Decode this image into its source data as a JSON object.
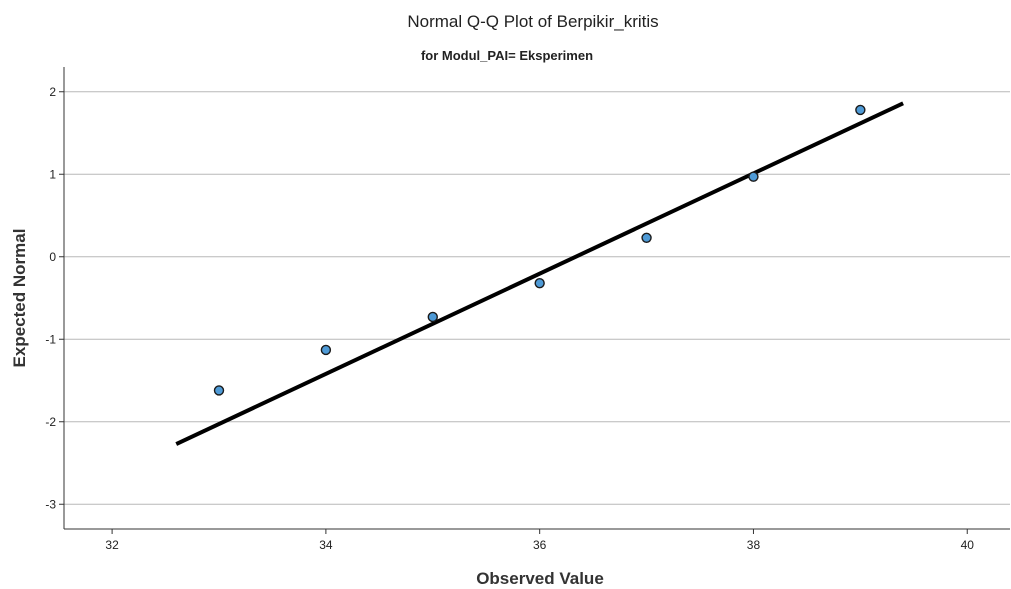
{
  "chart_data": {
    "type": "scatter",
    "title": "Normal Q-Q Plot of Berpikir_kritis",
    "subtitle": "for Modul_PAI= Eksperimen",
    "xlabel": "Observed Value",
    "ylabel": "Expected Normal",
    "xlim": [
      31.55,
      40.4
    ],
    "ylim": [
      -3.3,
      2.3
    ],
    "xticks": [
      "32",
      "34",
      "36",
      "38",
      "40"
    ],
    "yticks": [
      "2",
      "1",
      "0",
      "-1",
      "-2",
      "-3"
    ],
    "grid": "horizontal",
    "points": [
      {
        "x": 33,
        "y": -1.62
      },
      {
        "x": 34,
        "y": -1.13
      },
      {
        "x": 35,
        "y": -0.73
      },
      {
        "x": 36,
        "y": -0.32
      },
      {
        "x": 37,
        "y": 0.23
      },
      {
        "x": 38,
        "y": 0.97
      },
      {
        "x": 39,
        "y": 1.78
      }
    ],
    "reference_line": {
      "x": [
        32.6,
        39.4
      ],
      "y": [
        -2.27,
        1.86
      ]
    },
    "colors": {
      "point_fill": "#4e9ad6",
      "point_stroke": "#1a1a1a",
      "line": "#000000",
      "grid": "#b8b8b8",
      "axis": "#333333"
    }
  }
}
